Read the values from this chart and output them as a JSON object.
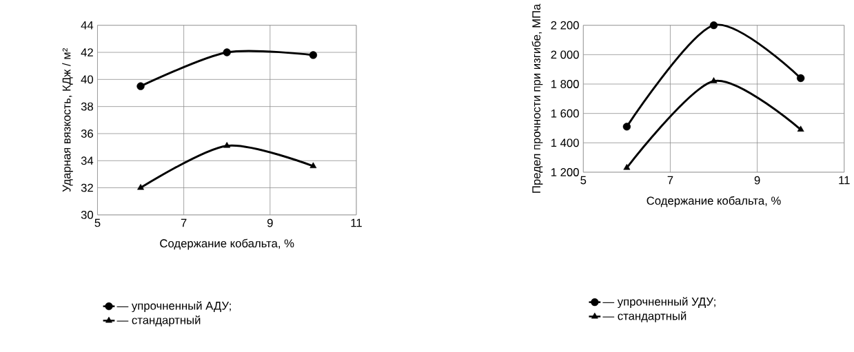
{
  "chart_data": [
    {
      "type": "line",
      "xlabel": "Содержание кобальта, %",
      "ylabel": "Ударная вязкость, КДж / м²",
      "x": [
        6,
        8,
        10
      ],
      "xlim": [
        5,
        11
      ],
      "xticks": [
        5,
        7,
        9,
        11
      ],
      "ylim": [
        30,
        44
      ],
      "yticks": [
        30,
        32,
        34,
        36,
        38,
        40,
        42,
        44
      ],
      "grid": true,
      "legend": "bottom",
      "series": [
        {
          "name": "— упрочненный АДУ;",
          "color": "#000000",
          "marker": "circle",
          "values": [
            39.5,
            42.0,
            41.8
          ]
        },
        {
          "name": "— стандартный",
          "color": "#000000",
          "marker": "triangle",
          "values": [
            32.0,
            35.1,
            33.6
          ]
        }
      ]
    },
    {
      "type": "line",
      "xlabel": "Содержание кобальта, %",
      "ylabel": "Предел прочности при изгибе, МПа",
      "x": [
        6,
        8,
        10
      ],
      "xlim": [
        5,
        11
      ],
      "xticks": [
        5,
        7,
        9,
        11
      ],
      "ylim": [
        1200,
        2200
      ],
      "yticks": [
        {
          "value": 1200,
          "label": "1 200"
        },
        {
          "value": 1400,
          "label": "1 400"
        },
        {
          "value": 1600,
          "label": "1 600"
        },
        {
          "value": 1800,
          "label": "1 800"
        },
        {
          "value": 2000,
          "label": "2 000"
        },
        {
          "value": 2200,
          "label": "2 200"
        }
      ],
      "grid": true,
      "legend": "bottom",
      "series": [
        {
          "name": "— упрочненный УДУ;",
          "color": "#000000",
          "marker": "circle",
          "values": [
            1510,
            2200,
            1840
          ]
        },
        {
          "name": "— стандартный",
          "color": "#000000",
          "marker": "triangle",
          "values": [
            1230,
            1820,
            1490
          ]
        }
      ]
    }
  ]
}
